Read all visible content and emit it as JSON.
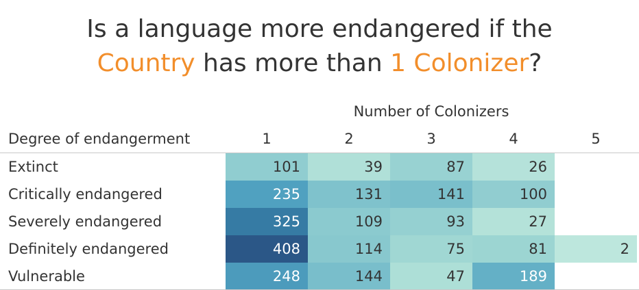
{
  "title": {
    "line1": "Is a language more endangered if the",
    "line2_part1": "Country",
    "line2_part2": " has more than ",
    "line2_part3": "1 Colonizer",
    "line2_part4": "?"
  },
  "colors": {
    "highlight": "#f28e2b",
    "scale_low": "#b8e3d9",
    "scale_high": "#2b5787"
  },
  "chart_data": {
    "type": "heatmap",
    "column_super_label": "Number of Colonizers",
    "row_header": "Degree of endangerment",
    "columns": [
      "1",
      "2",
      "3",
      "4",
      "5"
    ],
    "rows": [
      "Extinct",
      "Critically endangered",
      "Severely endangered",
      "Definitely endangered",
      "Vulnerable"
    ],
    "values": [
      [
        101,
        39,
        87,
        26,
        null
      ],
      [
        235,
        131,
        141,
        100,
        null
      ],
      [
        325,
        109,
        93,
        27,
        null
      ],
      [
        408,
        114,
        75,
        81,
        2
      ],
      [
        248,
        144,
        47,
        189,
        null
      ]
    ]
  }
}
